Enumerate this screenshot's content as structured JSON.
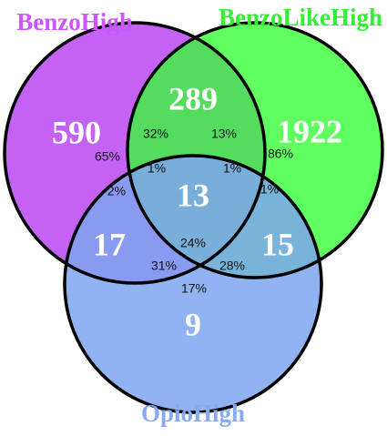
{
  "sets": [
    {
      "label": "BenzoHigh"
    },
    {
      "label": "BenzoLikeHigh"
    },
    {
      "label": "OpioHigh"
    }
  ],
  "regions": [
    {
      "count": 590
    },
    {
      "count": 289
    },
    {
      "count": 1922
    },
    {
      "count": 17
    },
    {
      "count": 13
    },
    {
      "count": 15
    },
    {
      "count": 9
    }
  ],
  "percentages": [
    "65%",
    "32%",
    "13%",
    "86%",
    "1%",
    "1%",
    "2%",
    "1%",
    "24%",
    "31%",
    "28%",
    "17%"
  ]
}
